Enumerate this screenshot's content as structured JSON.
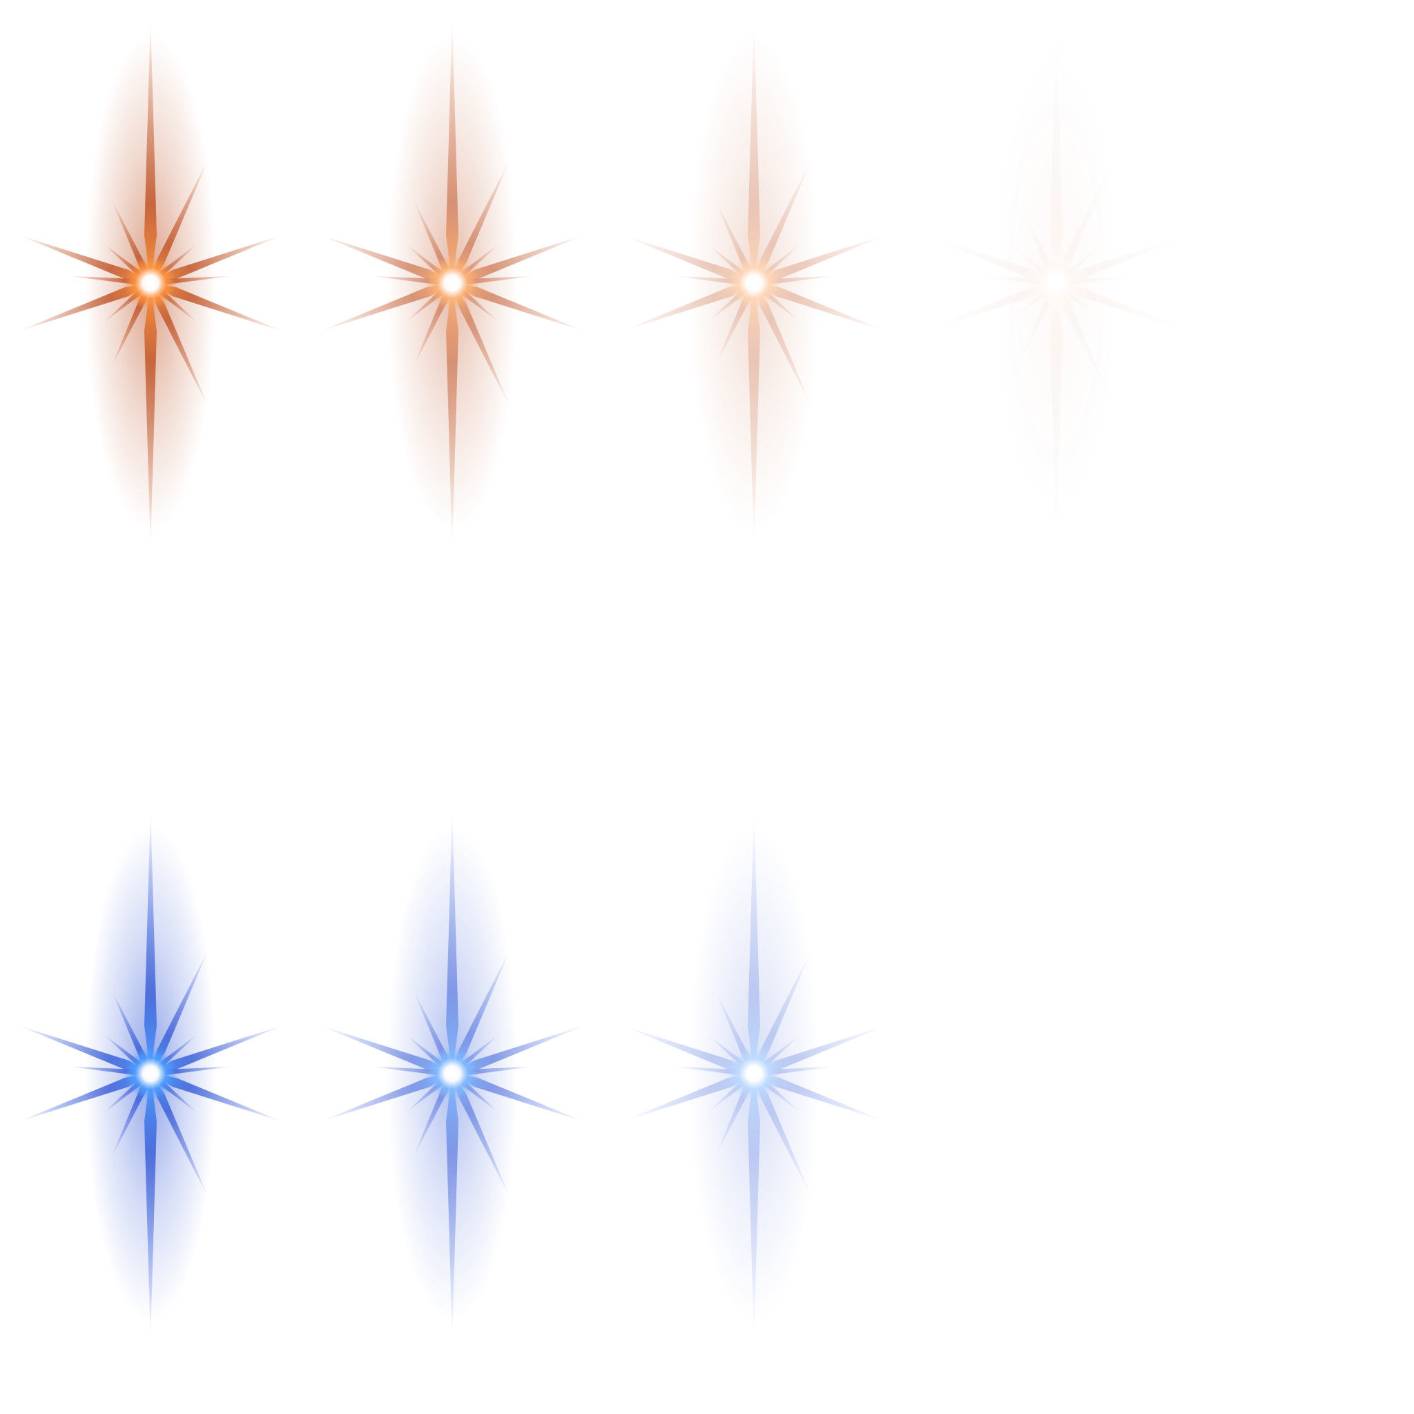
{
  "sprite_sheet": {
    "background": "#ffffff",
    "rows": [
      {
        "name": "orange",
        "glow": "#c0562a",
        "core": "#ff9640",
        "frames": [
          {
            "opacity": 1.0
          },
          {
            "opacity": 0.72
          },
          {
            "opacity": 0.38
          },
          {
            "opacity": 0.06
          }
        ]
      },
      {
        "name": "blue",
        "glow": "#3b5fd8",
        "core": "#4fa0ff",
        "frames": [
          {
            "opacity": 1.0
          },
          {
            "opacity": 0.72
          },
          {
            "opacity": 0.38
          }
        ]
      }
    ]
  }
}
